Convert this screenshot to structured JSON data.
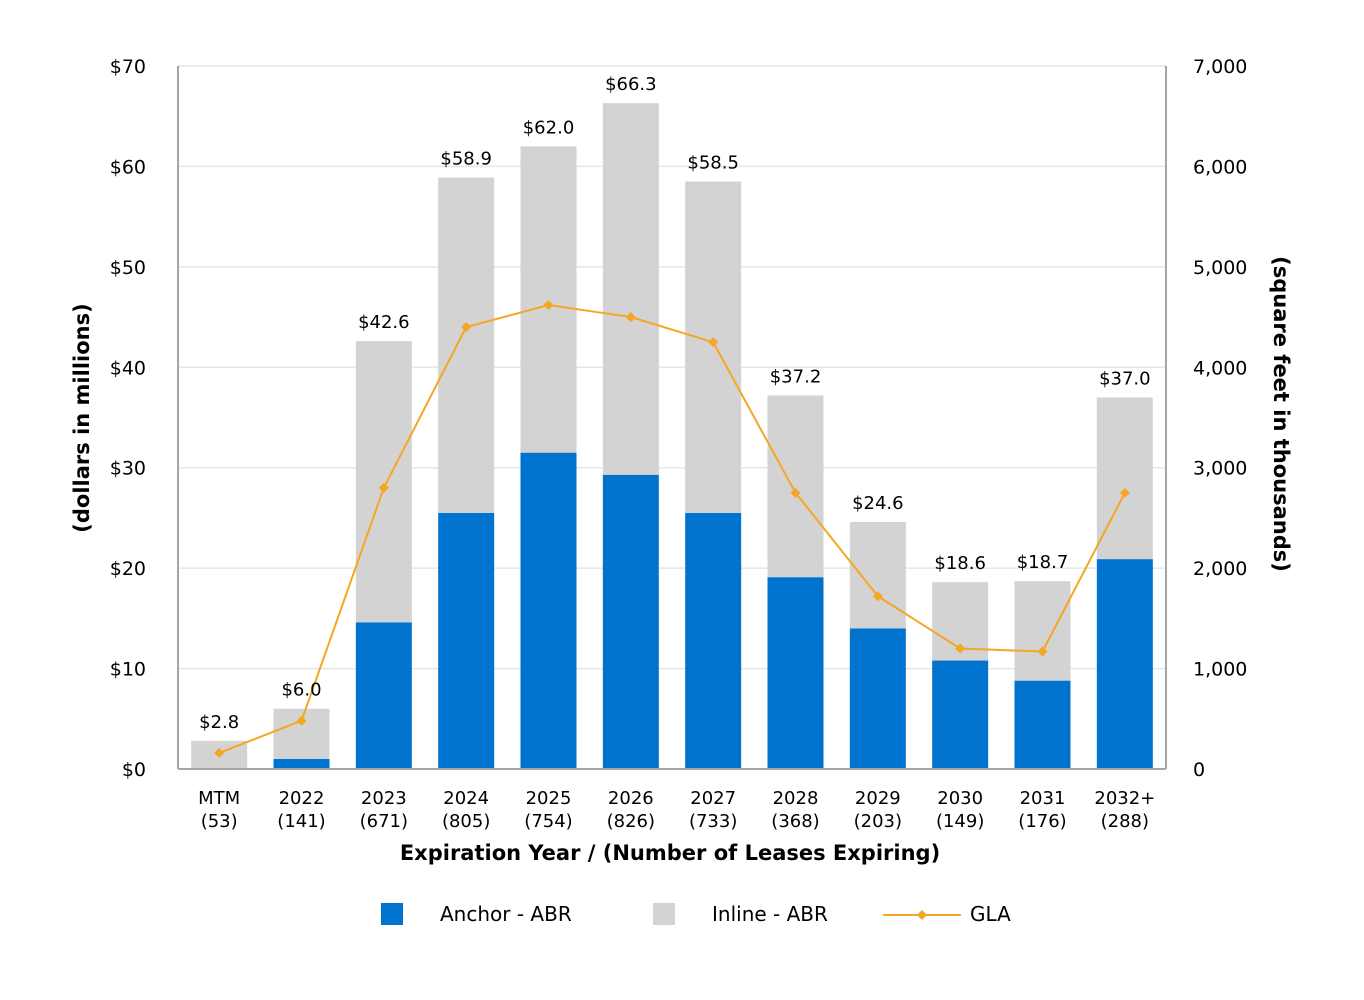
{
  "chart_data": {
    "type": "bar",
    "stacked": true,
    "categories": [
      [
        "MTM",
        "(53)"
      ],
      [
        "2022",
        "(141)"
      ],
      [
        "2023",
        "(671)"
      ],
      [
        "2024",
        "(805)"
      ],
      [
        "2025",
        "(754)"
      ],
      [
        "2026",
        "(826)"
      ],
      [
        "2027",
        "(733)"
      ],
      [
        "2028",
        "(368)"
      ],
      [
        "2029",
        "(203)"
      ],
      [
        "2030",
        "(149)"
      ],
      [
        "2031",
        "(176)"
      ],
      [
        "2032+",
        "(288)"
      ]
    ],
    "series": [
      {
        "name": "Anchor - ABR",
        "kind": "bar",
        "axis": "left",
        "color": "#0073CF",
        "values": [
          0,
          1.0,
          14.6,
          25.5,
          31.5,
          29.3,
          25.5,
          19.1,
          14.0,
          10.8,
          8.8,
          20.9
        ]
      },
      {
        "name": "Inline - ABR",
        "kind": "bar",
        "axis": "left",
        "color": "#D3D3D3",
        "values": [
          2.8,
          5.0,
          28.0,
          33.4,
          30.5,
          37.0,
          33.0,
          18.1,
          10.6,
          7.8,
          9.9,
          16.1
        ]
      },
      {
        "name": "GLA",
        "kind": "line",
        "axis": "right",
        "color": "#F5A623",
        "values": [
          160,
          480,
          2800,
          4400,
          4620,
          4500,
          4250,
          2750,
          1720,
          1200,
          1170,
          2750
        ]
      }
    ],
    "totals_labels": [
      "$2.8",
      "$6.0",
      "$42.6",
      "$58.9",
      "$62.0",
      "$66.3",
      "$58.5",
      "$37.2",
      "$24.6",
      "$18.6",
      "$18.7",
      "$37.0"
    ],
    "totals": [
      2.8,
      6.0,
      42.6,
      58.9,
      62.0,
      66.3,
      58.5,
      37.2,
      24.6,
      18.6,
      18.7,
      37.0
    ],
    "xlabel": "Expiration Year / (Number of Leases Expiring)",
    "ylabel": "(dollars in millions)",
    "y2label": "(square feet in thousands)",
    "ylim": [
      0,
      70
    ],
    "y2lim": [
      0,
      7000
    ],
    "yticks": [
      0,
      10,
      20,
      30,
      40,
      50,
      60,
      70
    ],
    "ytick_labels": [
      "$0",
      "$10",
      "$20",
      "$30",
      "$40",
      "$50",
      "$60",
      "$70"
    ],
    "y2ticks": [
      0,
      1000,
      2000,
      3000,
      4000,
      5000,
      6000,
      7000
    ],
    "y2tick_labels": [
      "0",
      "1,000",
      "2,000",
      "3,000",
      "4,000",
      "5,000",
      "6,000",
      "7,000"
    ],
    "grid": true,
    "legend_position": "bottom-center",
    "gridline_color": "#E6E6E6",
    "axis_color": "#A6A6A6"
  }
}
